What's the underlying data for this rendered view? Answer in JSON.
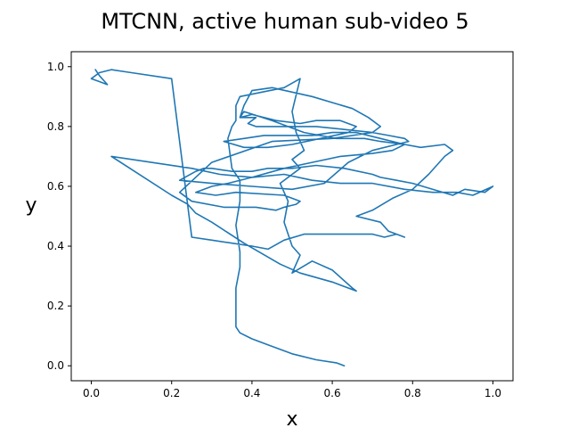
{
  "chart_data": {
    "type": "line",
    "title": "MTCNN, active human sub-video 5",
    "xlabel": "x",
    "ylabel": "y",
    "xlim": [
      -0.05,
      1.05
    ],
    "ylim": [
      -0.05,
      1.05
    ],
    "xticks": [
      "0.0",
      "0.2",
      "0.4",
      "0.6",
      "0.8",
      "1.0"
    ],
    "yticks": [
      "0.0",
      "0.2",
      "0.4",
      "0.6",
      "0.8",
      "1.0"
    ],
    "grid": false,
    "legend": "none",
    "series_color": "#1f77b4",
    "series": [
      {
        "x": [
          0.63,
          0.61,
          0.56,
          0.5,
          0.44,
          0.4,
          0.37,
          0.36,
          0.36,
          0.36,
          0.37,
          0.37,
          0.36,
          0.37,
          0.37,
          0.35,
          0.34,
          0.35,
          0.36,
          0.36,
          0.37,
          0.48,
          0.52,
          0.5,
          0.51,
          0.53,
          0.5,
          0.52,
          0.47,
          0.49,
          0.48,
          0.49,
          0.5,
          0.52,
          0.51,
          0.5,
          0.55,
          0.6,
          0.65,
          0.66,
          0.6,
          0.52,
          0.47,
          0.38,
          0.3,
          0.26,
          0.24,
          0.2,
          0.05,
          0.25,
          0.32,
          0.4,
          0.48,
          0.55,
          0.62,
          0.7,
          0.78,
          0.85,
          0.91,
          0.95,
          1.0,
          0.98,
          0.93,
          0.9,
          0.8,
          0.76,
          0.72,
          0.7,
          0.63,
          0.56,
          0.5,
          0.44,
          0.4,
          0.35,
          0.3,
          0.28,
          0.26,
          0.22,
          0.3,
          0.4,
          0.5,
          0.58,
          0.64,
          0.7,
          0.76,
          0.79,
          0.78,
          0.74,
          0.7,
          0.63,
          0.56,
          0.52,
          0.47,
          0.41,
          0.39,
          0.41,
          0.37,
          0.4,
          0.46,
          0.52,
          0.56,
          0.62,
          0.66,
          0.64,
          0.57,
          0.5,
          0.44,
          0.38,
          0.33,
          0.38,
          0.43,
          0.49,
          0.52,
          0.55,
          0.6,
          0.66,
          0.72,
          0.78,
          0.75,
          0.7,
          0.62,
          0.55,
          0.48,
          0.4,
          0.34,
          0.3,
          0.26,
          0.31,
          0.36,
          0.48,
          0.5,
          0.52,
          0.51,
          0.48,
          0.46,
          0.41,
          0.33,
          0.25,
          0.22,
          0.3,
          0.45,
          0.6,
          0.7,
          0.72,
          0.69,
          0.65,
          0.55,
          0.45,
          0.4,
          0.38,
          0.37,
          0.38,
          0.45,
          0.53,
          0.61,
          0.68,
          0.72,
          0.78,
          0.82,
          0.88,
          0.9,
          0.88,
          0.84,
          0.8,
          0.75,
          0.7,
          0.66,
          0.72,
          0.74,
          0.78,
          0.76,
          0.73,
          0.7,
          0.6,
          0.53,
          0.48,
          0.44,
          0.4,
          0.35,
          0.3,
          0.25,
          0.2,
          0.1,
          0.05,
          0.02,
          0.0,
          0.02,
          0.04,
          0.02,
          0.01
        ],
        "y": [
          0.0,
          0.01,
          0.02,
          0.04,
          0.07,
          0.09,
          0.11,
          0.13,
          0.17,
          0.26,
          0.33,
          0.38,
          0.47,
          0.55,
          0.62,
          0.66,
          0.76,
          0.8,
          0.82,
          0.87,
          0.9,
          0.93,
          0.96,
          0.85,
          0.78,
          0.72,
          0.69,
          0.66,
          0.61,
          0.55,
          0.48,
          0.44,
          0.4,
          0.37,
          0.34,
          0.31,
          0.35,
          0.32,
          0.26,
          0.25,
          0.28,
          0.31,
          0.34,
          0.41,
          0.48,
          0.51,
          0.54,
          0.57,
          0.7,
          0.66,
          0.64,
          0.63,
          0.64,
          0.62,
          0.61,
          0.61,
          0.59,
          0.58,
          0.58,
          0.57,
          0.6,
          0.58,
          0.59,
          0.57,
          0.61,
          0.62,
          0.63,
          0.64,
          0.66,
          0.67,
          0.66,
          0.66,
          0.65,
          0.65,
          0.66,
          0.66,
          0.65,
          0.62,
          0.61,
          0.6,
          0.59,
          0.61,
          0.68,
          0.72,
          0.74,
          0.75,
          0.76,
          0.77,
          0.78,
          0.79,
          0.8,
          0.8,
          0.8,
          0.8,
          0.81,
          0.83,
          0.83,
          0.84,
          0.82,
          0.81,
          0.82,
          0.82,
          0.8,
          0.78,
          0.76,
          0.74,
          0.73,
          0.73,
          0.75,
          0.76,
          0.77,
          0.77,
          0.77,
          0.77,
          0.78,
          0.78,
          0.76,
          0.74,
          0.72,
          0.71,
          0.7,
          0.68,
          0.66,
          0.63,
          0.61,
          0.6,
          0.58,
          0.57,
          0.58,
          0.57,
          0.56,
          0.55,
          0.54,
          0.53,
          0.52,
          0.53,
          0.53,
          0.55,
          0.58,
          0.68,
          0.75,
          0.76,
          0.78,
          0.8,
          0.83,
          0.86,
          0.9,
          0.93,
          0.92,
          0.87,
          0.83,
          0.85,
          0.82,
          0.78,
          0.76,
          0.76,
          0.75,
          0.74,
          0.73,
          0.74,
          0.72,
          0.7,
          0.64,
          0.59,
          0.56,
          0.52,
          0.5,
          0.48,
          0.45,
          0.43,
          0.44,
          0.43,
          0.44,
          0.44,
          0.44,
          0.42,
          0.39,
          0.4,
          0.41,
          0.42,
          0.43,
          0.96,
          0.98,
          0.99,
          0.98,
          0.96,
          0.95,
          0.94,
          0.97,
          0.99
        ]
      }
    ]
  }
}
